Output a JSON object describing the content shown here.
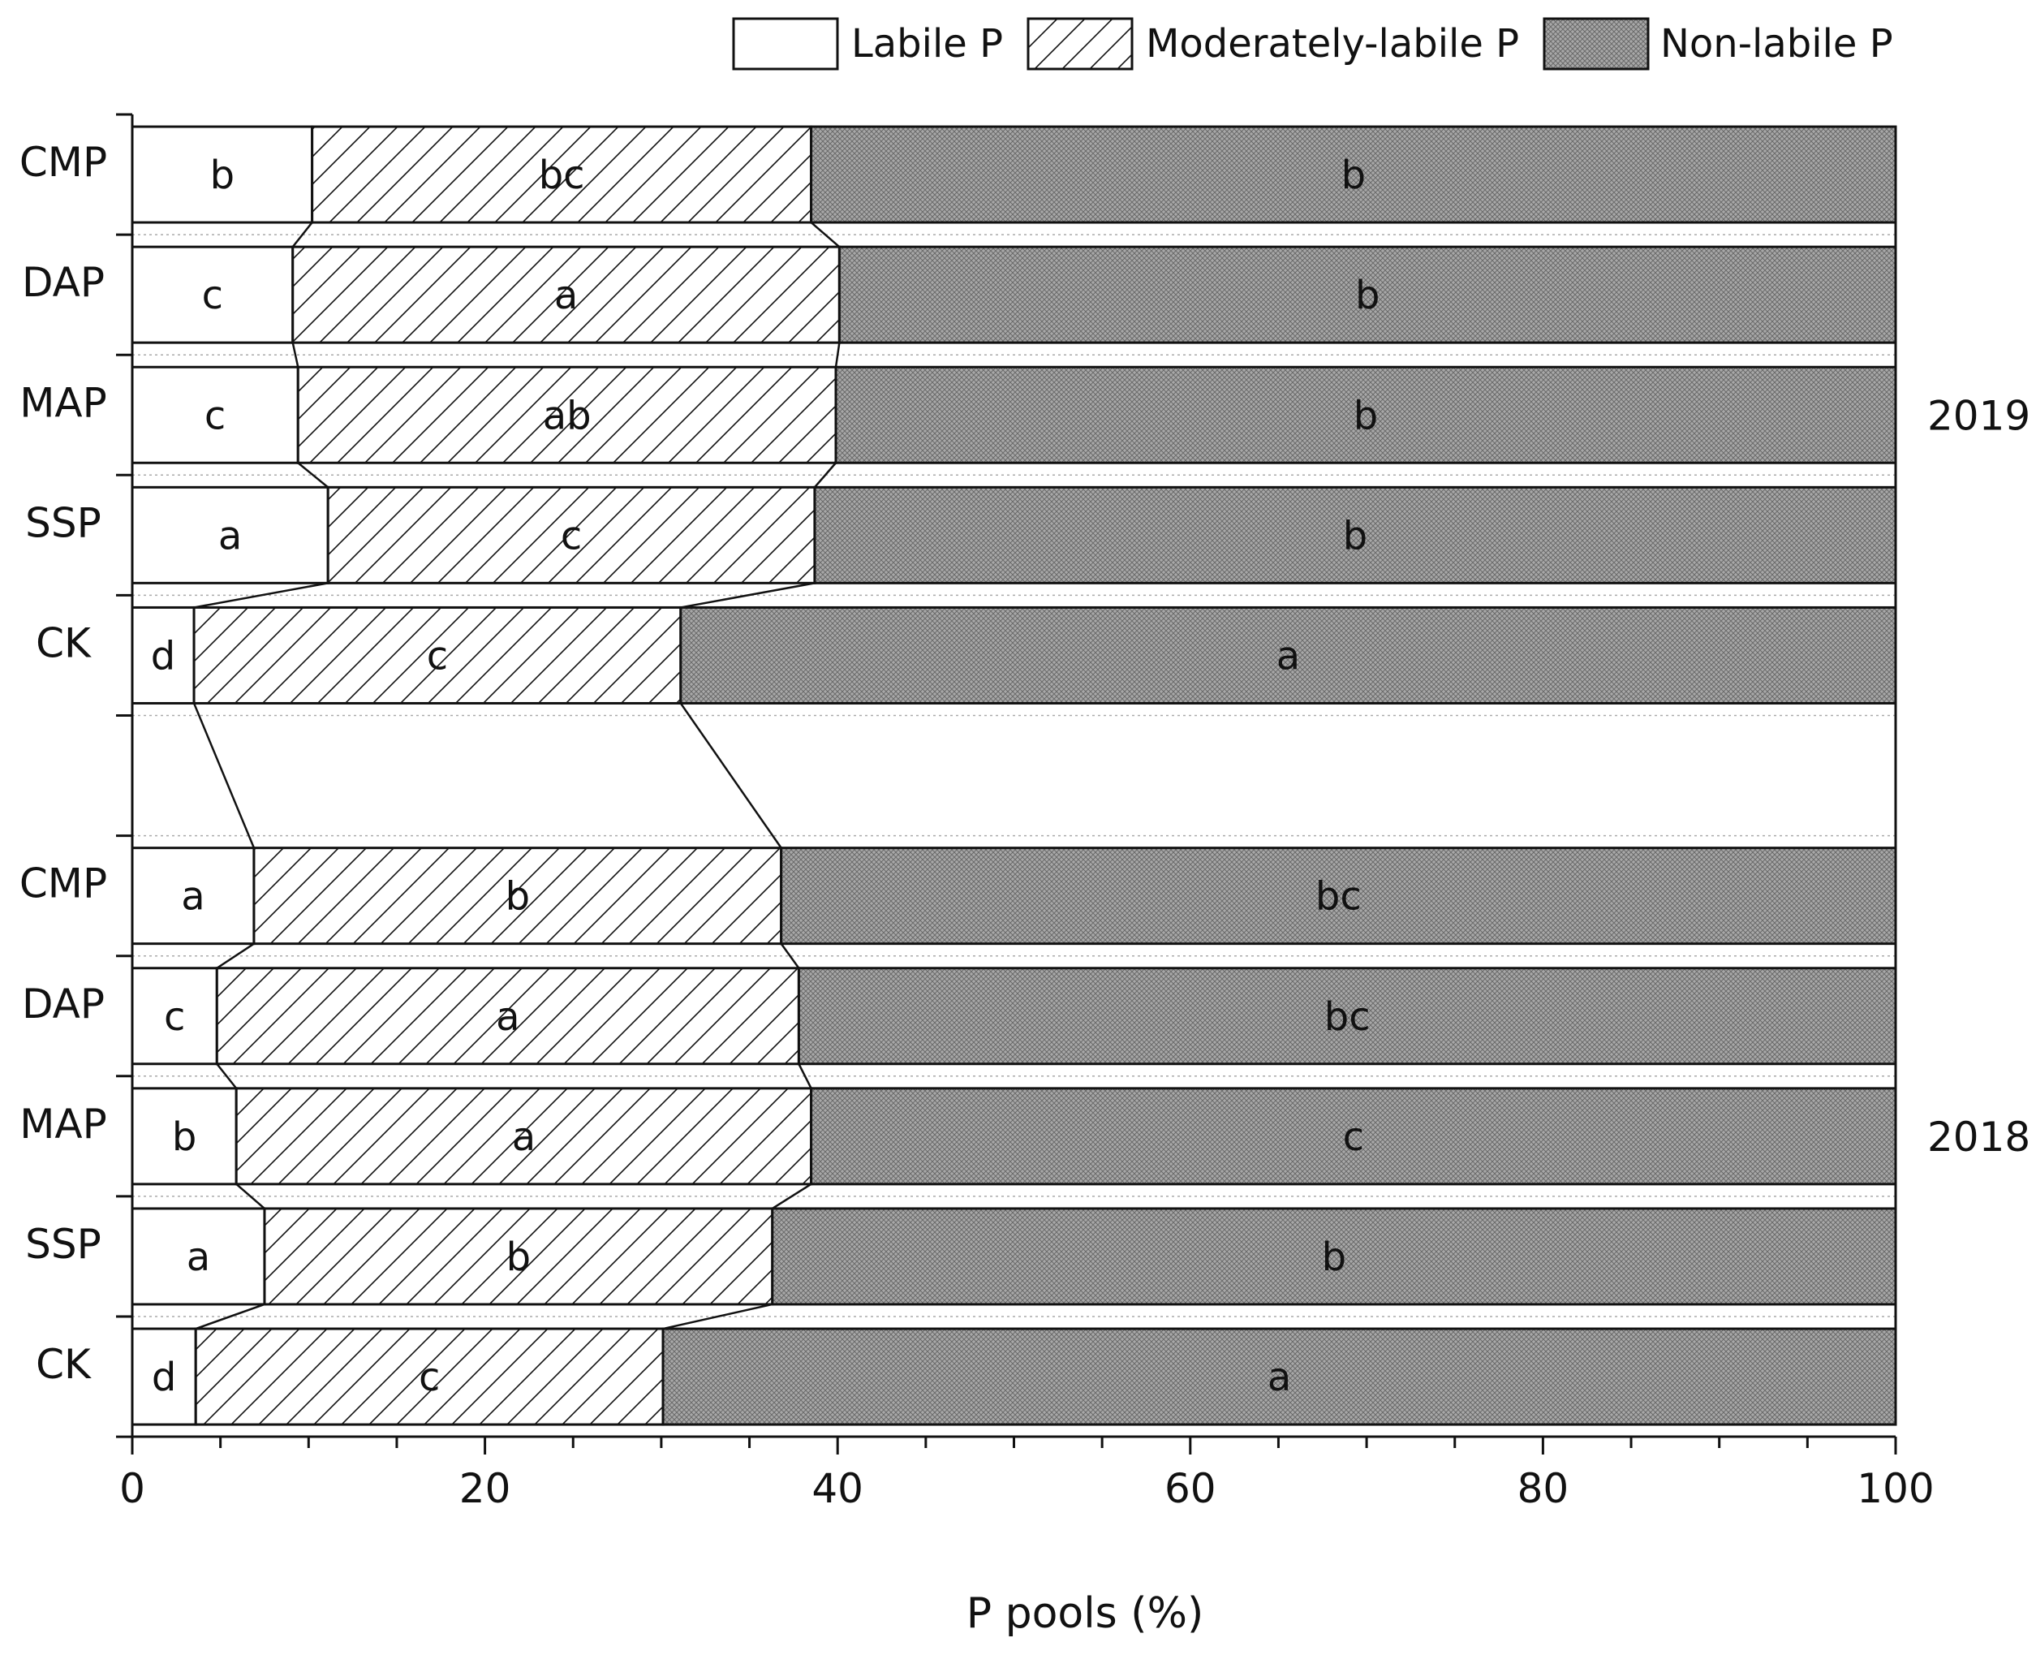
{
  "chart_data": {
    "type": "bar",
    "orientation": "horizontal",
    "stacked": true,
    "xlabel": "P pools (%)",
    "ylabel": "",
    "xlim": [
      0,
      100
    ],
    "x_ticks": [
      0,
      20,
      40,
      60,
      80,
      100
    ],
    "legend_position": "top-right",
    "series": [
      {
        "name": "Labile P",
        "pattern": "none",
        "color": "#ffffff"
      },
      {
        "name": "Moderately-labile P",
        "pattern": "diagonal-hatch",
        "color": "#ffffff"
      },
      {
        "name": "Non-labile P",
        "pattern": "crosshatch-gray",
        "color": "#a8a8a8"
      }
    ],
    "groups": [
      {
        "label": "2019",
        "bars": [
          {
            "category": "CMP",
            "values": [
              10.2,
              28.3,
              61.5
            ],
            "letters": [
              "b",
              "bc",
              "b"
            ]
          },
          {
            "category": "DAP",
            "values": [
              9.1,
              31.0,
              59.9
            ],
            "letters": [
              "c",
              "a",
              "b"
            ]
          },
          {
            "category": "MAP",
            "values": [
              9.4,
              30.5,
              60.1
            ],
            "letters": [
              "c",
              "ab",
              "b"
            ]
          },
          {
            "category": "SSP",
            "values": [
              11.1,
              27.6,
              61.3
            ],
            "letters": [
              "a",
              "c",
              "b"
            ]
          },
          {
            "category": "CK",
            "values": [
              3.5,
              27.6,
              68.9
            ],
            "letters": [
              "d",
              "c",
              "a"
            ]
          }
        ]
      },
      {
        "label": "2018",
        "bars": [
          {
            "category": "CMP",
            "values": [
              6.9,
              29.9,
              63.2
            ],
            "letters": [
              "a",
              "b",
              "bc"
            ]
          },
          {
            "category": "DAP",
            "values": [
              4.8,
              33.0,
              62.2
            ],
            "letters": [
              "c",
              "a",
              "bc"
            ]
          },
          {
            "category": "MAP",
            "values": [
              5.9,
              32.6,
              61.5
            ],
            "letters": [
              "b",
              "a",
              "c"
            ]
          },
          {
            "category": "SSP",
            "values": [
              7.5,
              28.8,
              63.7
            ],
            "letters": [
              "a",
              "b",
              "b"
            ]
          },
          {
            "category": "CK",
            "values": [
              3.6,
              26.5,
              69.9
            ],
            "letters": [
              "d",
              "c",
              "a"
            ]
          }
        ]
      }
    ]
  }
}
